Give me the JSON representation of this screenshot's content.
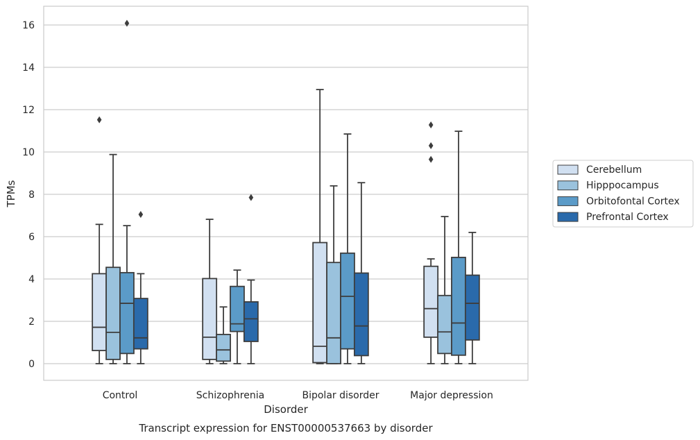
{
  "chart_data": {
    "type": "boxplot",
    "xlabel": "Disorder",
    "ylabel": "TPMs",
    "caption": "Transcript expression for ENST00000537663 by disorder",
    "categories": [
      "Control",
      "Schizophrenia",
      "Bipolar disorder",
      "Major depression"
    ],
    "ylim": [
      -0.8,
      16.8
    ],
    "yticks": [
      0,
      2,
      4,
      6,
      8,
      10,
      12,
      14,
      16
    ],
    "grid": true,
    "legend_position": "right",
    "series": [
      {
        "name": "Cerebellum",
        "color": "#d1e0f1",
        "boxes": [
          {
            "whisker_low": 0.0,
            "q1": 0.62,
            "median": 1.72,
            "q3": 4.25,
            "whisker_high": 6.58,
            "outliers": [
              11.52
            ]
          },
          {
            "whisker_low": 0.0,
            "q1": 0.2,
            "median": 1.25,
            "q3": 4.02,
            "whisker_high": 6.82,
            "outliers": []
          },
          {
            "whisker_low": 0.0,
            "q1": 0.05,
            "median": 0.82,
            "q3": 5.72,
            "whisker_high": 12.95,
            "outliers": []
          },
          {
            "whisker_low": 0.0,
            "q1": 1.25,
            "median": 2.6,
            "q3": 4.6,
            "whisker_high": 4.95,
            "outliers": [
              9.65,
              10.3,
              11.28
            ]
          }
        ]
      },
      {
        "name": "Hipppocampus",
        "color": "#9ac2dd",
        "boxes": [
          {
            "whisker_low": 0.0,
            "q1": 0.2,
            "median": 1.48,
            "q3": 4.55,
            "whisker_high": 9.88,
            "outliers": []
          },
          {
            "whisker_low": 0.0,
            "q1": 0.12,
            "median": 0.65,
            "q3": 1.38,
            "whisker_high": 2.68,
            "outliers": []
          },
          {
            "whisker_low": 0.0,
            "q1": 0.0,
            "median": 1.22,
            "q3": 4.78,
            "whisker_high": 8.4,
            "outliers": []
          },
          {
            "whisker_low": 0.0,
            "q1": 0.48,
            "median": 1.5,
            "q3": 3.22,
            "whisker_high": 6.95,
            "outliers": []
          }
        ]
      },
      {
        "name": "Orbitofontal Cortex",
        "color": "#5b9bc8",
        "boxes": [
          {
            "whisker_low": 0.0,
            "q1": 0.48,
            "median": 2.85,
            "q3": 4.3,
            "whisker_high": 6.52,
            "outliers": [
              16.08
            ]
          },
          {
            "whisker_low": 0.0,
            "q1": 1.52,
            "median": 1.88,
            "q3": 3.65,
            "whisker_high": 4.42,
            "outliers": []
          },
          {
            "whisker_low": 0.0,
            "q1": 0.7,
            "median": 3.18,
            "q3": 5.22,
            "whisker_high": 10.85,
            "outliers": []
          },
          {
            "whisker_low": 0.0,
            "q1": 0.4,
            "median": 1.92,
            "q3": 5.02,
            "whisker_high": 10.98,
            "outliers": []
          }
        ]
      },
      {
        "name": "Prefrontal Cortex",
        "color": "#2a6aab",
        "boxes": [
          {
            "whisker_low": 0.0,
            "q1": 0.7,
            "median": 1.22,
            "q3": 3.08,
            "whisker_high": 4.25,
            "outliers": [
              7.05
            ]
          },
          {
            "whisker_low": 0.0,
            "q1": 1.05,
            "median": 2.12,
            "q3": 2.92,
            "whisker_high": 3.95,
            "outliers": [
              7.85
            ]
          },
          {
            "whisker_low": 0.0,
            "q1": 0.38,
            "median": 1.78,
            "q3": 4.28,
            "whisker_high": 8.55,
            "outliers": []
          },
          {
            "whisker_low": 0.0,
            "q1": 1.12,
            "median": 2.85,
            "q3": 4.18,
            "whisker_high": 6.2,
            "outliers": []
          }
        ]
      }
    ]
  }
}
